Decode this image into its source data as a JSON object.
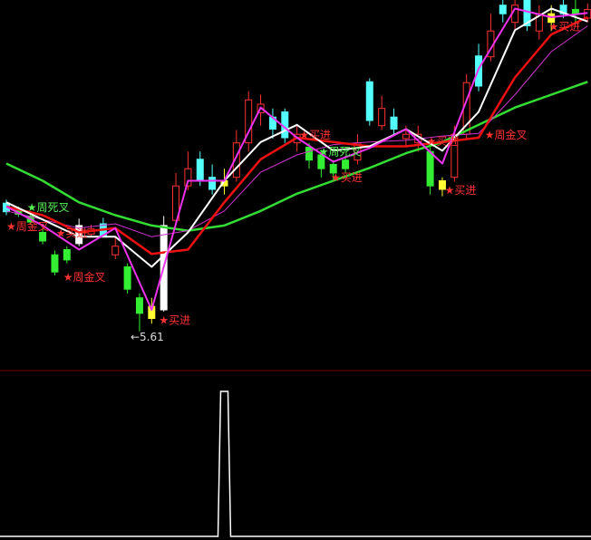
{
  "chart_data": {
    "type": "candlestick",
    "ylim": [
      5.4,
      9.46
    ],
    "colors": {
      "up": "#ff3232",
      "down": "#54ffff",
      "green": "#33ee33",
      "yellow": "#ffff33",
      "white": "#ffffff",
      "divider": "#800000"
    },
    "candles": [
      {
        "o": 7.1,
        "c": 7.0,
        "h": 7.14,
        "l": 6.96,
        "col": "down"
      },
      {
        "o": 7.03,
        "c": 6.97,
        "h": 7.06,
        "l": 6.94,
        "col": "green"
      },
      {
        "o": 6.95,
        "c": 6.88,
        "h": 6.98,
        "l": 6.85,
        "col": "green"
      },
      {
        "o": 6.76,
        "c": 6.66,
        "h": 6.8,
        "l": 6.62,
        "col": "green"
      },
      {
        "o": 6.5,
        "c": 6.3,
        "h": 6.55,
        "l": 6.26,
        "col": "green"
      },
      {
        "o": 6.44,
        "c": 6.56,
        "h": 6.6,
        "l": 6.4,
        "col": "green"
      },
      {
        "o": 6.63,
        "c": 6.84,
        "h": 6.92,
        "l": 6.6,
        "col": "white"
      },
      {
        "o": 6.8,
        "c": 6.74,
        "h": 6.85,
        "l": 6.7,
        "col": "up"
      },
      {
        "o": 6.86,
        "c": 6.72,
        "h": 6.93,
        "l": 6.7,
        "col": "down"
      },
      {
        "o": 6.6,
        "c": 6.5,
        "h": 6.7,
        "l": 6.45,
        "col": "up"
      },
      {
        "o": 6.36,
        "c": 6.1,
        "h": 6.4,
        "l": 6.05,
        "col": "green"
      },
      {
        "o": 6.0,
        "c": 5.82,
        "h": 6.05,
        "l": 5.61,
        "col": "green"
      },
      {
        "o": 5.76,
        "c": 5.9,
        "h": 6.0,
        "l": 5.7,
        "col": "yellow"
      },
      {
        "o": 5.86,
        "c": 6.84,
        "h": 6.95,
        "l": 5.84,
        "col": "white"
      },
      {
        "o": 6.9,
        "c": 7.3,
        "h": 7.45,
        "l": 6.85,
        "col": "up"
      },
      {
        "o": 7.3,
        "c": 7.5,
        "h": 7.7,
        "l": 7.25,
        "col": "up"
      },
      {
        "o": 7.61,
        "c": 7.36,
        "h": 7.7,
        "l": 7.3,
        "col": "down"
      },
      {
        "o": 7.4,
        "c": 7.26,
        "h": 7.55,
        "l": 7.2,
        "col": "down"
      },
      {
        "o": 7.3,
        "c": 7.36,
        "h": 7.5,
        "l": 7.2,
        "col": "yellow"
      },
      {
        "o": 7.4,
        "c": 7.8,
        "h": 7.95,
        "l": 7.35,
        "col": "up"
      },
      {
        "o": 7.8,
        "c": 8.3,
        "h": 8.4,
        "l": 7.7,
        "col": "up"
      },
      {
        "o": 8.25,
        "c": 8.15,
        "h": 8.36,
        "l": 8.0,
        "col": "up"
      },
      {
        "o": 8.1,
        "c": 7.96,
        "h": 8.2,
        "l": 7.85,
        "col": "down"
      },
      {
        "o": 8.16,
        "c": 7.86,
        "h": 8.2,
        "l": 7.8,
        "col": "down"
      },
      {
        "o": 7.9,
        "c": 7.8,
        "h": 8.0,
        "l": 7.7,
        "col": "up"
      },
      {
        "o": 7.6,
        "c": 7.75,
        "h": 7.8,
        "l": 7.5,
        "col": "green"
      },
      {
        "o": 7.66,
        "c": 7.5,
        "h": 7.72,
        "l": 7.4,
        "col": "green"
      },
      {
        "o": 7.55,
        "c": 7.45,
        "h": 7.6,
        "l": 7.35,
        "col": "green"
      },
      {
        "o": 7.5,
        "c": 7.6,
        "h": 7.65,
        "l": 7.45,
        "col": "green"
      },
      {
        "o": 7.6,
        "c": 7.8,
        "h": 7.9,
        "l": 7.55,
        "col": "up"
      },
      {
        "o": 8.51,
        "c": 8.06,
        "h": 8.55,
        "l": 8.0,
        "col": "down"
      },
      {
        "o": 8.0,
        "c": 8.2,
        "h": 8.35,
        "l": 7.95,
        "col": "up"
      },
      {
        "o": 8.1,
        "c": 7.96,
        "h": 8.2,
        "l": 7.9,
        "col": "down"
      },
      {
        "o": 7.9,
        "c": 7.85,
        "h": 8.0,
        "l": 7.75,
        "col": "up"
      },
      {
        "o": 7.8,
        "c": 7.9,
        "h": 8.0,
        "l": 7.7,
        "col": "up"
      },
      {
        "o": 7.7,
        "c": 7.3,
        "h": 7.75,
        "l": 7.2,
        "col": "green"
      },
      {
        "o": 7.36,
        "c": 7.26,
        "h": 7.4,
        "l": 7.18,
        "col": "yellow"
      },
      {
        "o": 7.4,
        "c": 7.9,
        "h": 8.0,
        "l": 7.35,
        "col": "up"
      },
      {
        "o": 7.9,
        "c": 8.5,
        "h": 8.6,
        "l": 7.85,
        "col": "up"
      },
      {
        "o": 8.81,
        "c": 8.46,
        "h": 8.95,
        "l": 8.4,
        "col": "down"
      },
      {
        "o": 8.8,
        "c": 9.1,
        "h": 9.3,
        "l": 8.75,
        "col": "up"
      },
      {
        "o": 9.4,
        "c": 9.3,
        "h": 9.46,
        "l": 9.2,
        "col": "down"
      },
      {
        "o": 9.2,
        "c": 9.4,
        "h": 9.46,
        "l": 9.1,
        "col": "up"
      },
      {
        "o": 9.46,
        "c": 9.16,
        "h": 9.46,
        "l": 9.1,
        "col": "down"
      },
      {
        "o": 9.1,
        "c": 9.3,
        "h": 9.4,
        "l": 9.0,
        "col": "up"
      },
      {
        "o": 9.3,
        "c": 9.2,
        "h": 9.4,
        "l": 9.1,
        "col": "yellow"
      },
      {
        "o": 9.4,
        "c": 9.3,
        "h": 9.46,
        "l": 9.25,
        "col": "down"
      },
      {
        "o": 9.3,
        "c": 9.35,
        "h": 9.46,
        "l": 9.2,
        "col": "green"
      },
      {
        "o": 9.25,
        "c": 9.35,
        "h": 9.42,
        "l": 9.2,
        "col": "up"
      }
    ],
    "line_step": 3,
    "lines": [
      {
        "color": "#33dd33",
        "width": 2.5,
        "values": [
          7.56,
          7.36,
          7.11,
          6.96,
          6.84,
          6.78,
          6.84,
          7.01,
          7.21,
          7.36,
          7.51,
          7.68,
          7.81,
          8.01,
          8.21,
          8.36,
          8.51
        ]
      },
      {
        "color": "#cc33cc",
        "width": 1,
        "values": [
          7.01,
          6.91,
          6.81,
          6.86,
          6.71,
          6.78,
          7.01,
          7.46,
          7.66,
          7.78,
          7.81,
          7.83,
          7.88,
          7.91,
          8.36,
          8.86,
          9.16
        ]
      },
      {
        "color": "#ee1111",
        "width": 2.5,
        "values": [
          7.06,
          6.96,
          6.76,
          6.81,
          6.51,
          6.56,
          7.11,
          7.61,
          7.86,
          7.81,
          7.76,
          7.76,
          7.81,
          7.86,
          8.56,
          9.06,
          9.26
        ]
      },
      {
        "color": "#ffffff",
        "width": 2,
        "values": [
          7.11,
          6.91,
          6.71,
          6.71,
          6.36,
          6.76,
          7.36,
          7.81,
          8.01,
          7.71,
          7.76,
          7.96,
          7.71,
          8.16,
          9.11,
          9.36,
          9.21
        ]
      },
      {
        "color": "#ee33ee",
        "width": 2,
        "values": [
          7.06,
          6.84,
          6.56,
          6.81,
          5.86,
          7.36,
          7.36,
          8.21,
          7.86,
          7.58,
          7.74,
          7.96,
          7.56,
          8.66,
          9.36,
          9.26,
          9.31
        ]
      }
    ],
    "signals": [
      {
        "text": "周死叉",
        "i": 1.7,
        "p": 7.06,
        "color": "#55ee55"
      },
      {
        "text": "周金叉",
        "i": 0,
        "p": 6.84,
        "color": "#ff3232"
      },
      {
        "text": "买进",
        "i": 4.1,
        "p": 6.76,
        "color": "#ff3232"
      },
      {
        "text": "周金叉",
        "i": 4.7,
        "p": 6.25,
        "color": "#ff3232"
      },
      {
        "text": "买进",
        "i": 12.6,
        "p": 5.75,
        "color": "#ff3232"
      },
      {
        "text": "买进",
        "i": 24.2,
        "p": 7.9,
        "color": "#ff3232"
      },
      {
        "text": "周死叉",
        "i": 25.8,
        "p": 7.71,
        "color": "#55ee55"
      },
      {
        "text": "买进",
        "i": 26.8,
        "p": 7.41,
        "color": "#ff3232"
      },
      {
        "text": "买进",
        "i": 34.7,
        "p": 7.83,
        "color": "#ff3232"
      },
      {
        "text": "买进",
        "i": 36.2,
        "p": 7.26,
        "color": "#ff3232"
      },
      {
        "text": "周金叉",
        "i": 39.5,
        "p": 7.9,
        "color": "#ff3232"
      },
      {
        "text": "买进",
        "i": 44.8,
        "p": 9.16,
        "color": "#ff3232"
      }
    ],
    "low_marker": {
      "i": 11,
      "label": "5.61"
    },
    "indicator": {
      "ylim": [
        0,
        1
      ],
      "values": [
        0,
        0,
        0,
        0,
        0,
        0,
        0,
        0,
        0,
        0,
        0,
        0,
        0,
        0,
        0,
        0,
        0,
        0,
        1,
        0,
        0,
        0,
        0,
        0,
        0,
        0,
        0,
        0,
        0,
        0,
        0,
        0,
        0,
        0,
        0,
        0,
        0,
        0,
        0,
        0,
        0,
        0,
        0,
        0,
        0,
        0,
        0,
        0,
        0
      ]
    }
  }
}
